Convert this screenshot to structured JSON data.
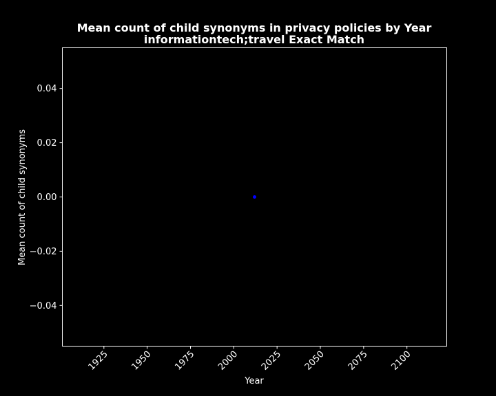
{
  "chart_data": {
    "type": "scatter",
    "title": "Mean count of child synonyms in privacy policies by Year",
    "subtitle": "informationtech;travel Exact Match",
    "xlabel": "Year",
    "ylabel": "Mean count of child synonyms",
    "xlim": [
      1901,
      2123
    ],
    "ylim": [
      -0.055,
      0.055
    ],
    "x_ticks": [
      1925,
      1950,
      1975,
      2000,
      2025,
      2050,
      2075,
      2100
    ],
    "y_ticks": [
      -0.04,
      -0.02,
      0.0,
      0.02,
      0.04
    ],
    "y_tick_labels": [
      "−0.04",
      "−0.02",
      "0.00",
      "0.02",
      "0.04"
    ],
    "grid": false,
    "background_color": "#000000",
    "foreground_color": "#ffffff",
    "series": [
      {
        "color": "#0000ff",
        "points": [
          {
            "x": 2012,
            "y": 0.0
          }
        ]
      }
    ]
  }
}
